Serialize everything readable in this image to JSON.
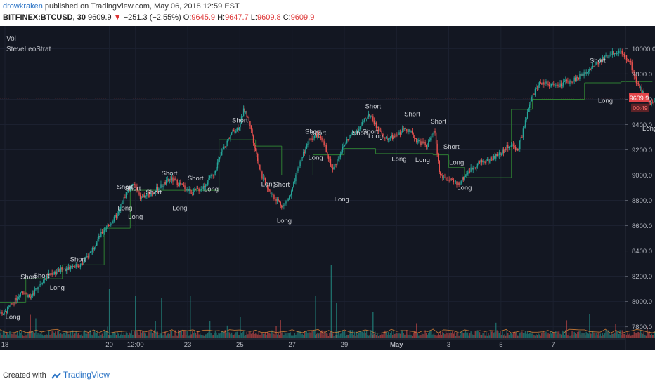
{
  "header": {
    "author": "drowkraken",
    "published_text": " published on TradingView.com, May 06, 2018 12:59 EST",
    "symbol": "BITFINEX:BTCUSD, 30",
    "last": "9609.9",
    "down_arrow": "▼",
    "change": "−251.3 (−2.55%)",
    "o_label": "O:",
    "o_value": "9645.9",
    "h_label": "H:",
    "h_value": "9647.7",
    "l_label": "L:",
    "l_value": "9609.8",
    "c_label": "C:",
    "c_value": "9609.9"
  },
  "legend": {
    "vol": "Vol",
    "strategy": "SteveLeoStrat"
  },
  "price_badge": {
    "price": "9609.9",
    "countdown": "00:49"
  },
  "footer": {
    "created_with": "Created with",
    "brand": "TradingView"
  },
  "colors": {
    "background": "#131722",
    "up": "#26a69a",
    "down": "#ef5350",
    "price_line": "#e05050",
    "stop_line": "#2e7d32",
    "label": "#d0d3d9"
  },
  "chart_data": {
    "type": "candlestick",
    "title": "",
    "ylim": [
      7720,
      10130
    ],
    "y_ticks": [
      10000,
      9800,
      9600,
      9400,
      9200,
      9000,
      8800,
      8600,
      8400,
      8200,
      8000,
      7800
    ],
    "y_tick_labels": [
      "10000.0",
      "9800.0",
      "9600.0",
      "9400.0",
      "9200.0",
      "9000.0",
      "8800.0",
      "8600.0",
      "8400.0",
      "8200.0",
      "8000.0",
      "7800.0"
    ],
    "x_ticks": [
      {
        "label": "18",
        "day": 0
      },
      {
        "label": "20",
        "day": 2
      },
      {
        "label": "12:00",
        "day": 2.5
      },
      {
        "label": "23",
        "day": 3.5
      },
      {
        "label": "25",
        "day": 4.5
      },
      {
        "label": "27",
        "day": 5.5
      },
      {
        "label": "29",
        "day": 6.5
      },
      {
        "label": "May",
        "day": 7.5
      },
      {
        "label": "3",
        "day": 8.5
      },
      {
        "label": "5",
        "day": 9.5
      },
      {
        "label": "7",
        "day": 10.5
      }
    ],
    "price_path": [
      [
        -0.2,
        7940
      ],
      [
        0.0,
        7900
      ],
      [
        0.2,
        8000
      ],
      [
        0.35,
        8090
      ],
      [
        0.5,
        8030
      ],
      [
        0.7,
        8150
      ],
      [
        0.9,
        8220
      ],
      [
        1.1,
        8250
      ],
      [
        1.3,
        8280
      ],
      [
        1.5,
        8290
      ],
      [
        1.7,
        8420
      ],
      [
        1.9,
        8560
      ],
      [
        2.05,
        8620
      ],
      [
        2.2,
        8700
      ],
      [
        2.35,
        8870
      ],
      [
        2.5,
        8930
      ],
      [
        2.6,
        8820
      ],
      [
        2.8,
        8850
      ],
      [
        3.0,
        8910
      ],
      [
        3.2,
        8970
      ],
      [
        3.4,
        8920
      ],
      [
        3.6,
        8860
      ],
      [
        3.8,
        8900
      ],
      [
        4.0,
        9000
      ],
      [
        4.2,
        9200
      ],
      [
        4.35,
        9330
      ],
      [
        4.5,
        9380
      ],
      [
        4.6,
        9520
      ],
      [
        4.7,
        9430
      ],
      [
        4.8,
        9230
      ],
      [
        4.95,
        8980
      ],
      [
        5.15,
        8840
      ],
      [
        5.35,
        8750
      ],
      [
        5.5,
        8850
      ],
      [
        5.7,
        9140
      ],
      [
        5.85,
        9280
      ],
      [
        6.0,
        9320
      ],
      [
        6.15,
        9230
      ],
      [
        6.3,
        9040
      ],
      [
        6.45,
        9180
      ],
      [
        6.6,
        9300
      ],
      [
        6.8,
        9370
      ],
      [
        7.0,
        9490
      ],
      [
        7.15,
        9370
      ],
      [
        7.3,
        9290
      ],
      [
        7.5,
        9300
      ],
      [
        7.7,
        9380
      ],
      [
        7.9,
        9280
      ],
      [
        8.1,
        9230
      ],
      [
        8.25,
        9350
      ],
      [
        8.35,
        9000
      ],
      [
        8.5,
        8960
      ],
      [
        8.7,
        8930
      ],
      [
        8.9,
        9030
      ],
      [
        9.1,
        9100
      ],
      [
        9.3,
        9120
      ],
      [
        9.5,
        9170
      ],
      [
        9.7,
        9240
      ],
      [
        9.85,
        9200
      ],
      [
        10.0,
        9440
      ],
      [
        10.1,
        9600
      ],
      [
        10.25,
        9730
      ],
      [
        10.4,
        9730
      ],
      [
        10.6,
        9700
      ],
      [
        10.8,
        9740
      ],
      [
        11.0,
        9770
      ],
      [
        11.2,
        9840
      ],
      [
        11.4,
        9900
      ],
      [
        11.55,
        9940
      ],
      [
        11.7,
        9980
      ],
      [
        11.85,
        9960
      ],
      [
        12.0,
        9890
      ],
      [
        12.1,
        9750
      ],
      [
        12.25,
        9640
      ],
      [
        12.4,
        9560
      ],
      [
        12.55,
        9610
      ]
    ],
    "stop_levels": [
      [
        -0.2,
        0.4,
        7990
      ],
      [
        0.4,
        1.1,
        8180
      ],
      [
        1.1,
        1.9,
        8290
      ],
      [
        1.9,
        2.4,
        8580
      ],
      [
        2.4,
        3.5,
        8880
      ],
      [
        3.5,
        4.1,
        8880
      ],
      [
        4.1,
        4.8,
        9280
      ],
      [
        4.8,
        5.3,
        9230
      ],
      [
        5.3,
        5.9,
        9000
      ],
      [
        5.9,
        6.5,
        9160
      ],
      [
        6.5,
        7.1,
        9210
      ],
      [
        7.1,
        8.2,
        9170
      ],
      [
        8.2,
        8.5,
        9160
      ],
      [
        8.5,
        8.8,
        9060
      ],
      [
        8.8,
        9.7,
        8980
      ],
      [
        9.7,
        10.1,
        9520
      ],
      [
        10.1,
        11.1,
        9600
      ],
      [
        11.1,
        11.8,
        9730
      ],
      [
        11.8,
        12.4,
        9740
      ]
    ],
    "signals": [
      {
        "d": 0.15,
        "y": 7940,
        "text": "Long",
        "side": "below"
      },
      {
        "d": 0.45,
        "y": 8150,
        "text": "Short",
        "side": "above"
      },
      {
        "d": 0.7,
        "y": 8160,
        "text": "Short",
        "side": "above"
      },
      {
        "d": 1.0,
        "y": 8170,
        "text": "Long",
        "side": "below"
      },
      {
        "d": 1.4,
        "y": 8290,
        "text": "Short",
        "side": "above"
      },
      {
        "d": 2.3,
        "y": 8860,
        "text": "Short",
        "side": "above"
      },
      {
        "d": 2.45,
        "y": 8850,
        "text": "Short",
        "side": "above"
      },
      {
        "d": 2.3,
        "y": 8800,
        "text": "Long",
        "side": "below"
      },
      {
        "d": 2.5,
        "y": 8730,
        "text": "Long",
        "side": "below"
      },
      {
        "d": 2.85,
        "y": 8820,
        "text": "Short",
        "side": "above"
      },
      {
        "d": 3.15,
        "y": 8970,
        "text": "Short",
        "side": "above"
      },
      {
        "d": 3.35,
        "y": 8800,
        "text": "Long",
        "side": "below"
      },
      {
        "d": 3.65,
        "y": 8930,
        "text": "Short",
        "side": "above"
      },
      {
        "d": 3.95,
        "y": 8950,
        "text": "Long",
        "side": "below"
      },
      {
        "d": 4.5,
        "y": 9390,
        "text": "Short",
        "side": "above"
      },
      {
        "d": 5.05,
        "y": 8990,
        "text": "Long",
        "side": "below"
      },
      {
        "d": 5.3,
        "y": 8880,
        "text": "Short",
        "side": "above"
      },
      {
        "d": 5.35,
        "y": 8700,
        "text": "Long",
        "side": "below"
      },
      {
        "d": 5.9,
        "y": 9300,
        "text": "Short",
        "side": "above"
      },
      {
        "d": 6.0,
        "y": 9290,
        "text": "Short",
        "side": "above"
      },
      {
        "d": 5.95,
        "y": 9200,
        "text": "Long",
        "side": "below"
      },
      {
        "d": 6.45,
        "y": 8870,
        "text": "Long",
        "side": "below"
      },
      {
        "d": 6.8,
        "y": 9290,
        "text": "Short",
        "side": "above"
      },
      {
        "d": 7.0,
        "y": 9300,
        "text": "Short",
        "side": "above"
      },
      {
        "d": 7.05,
        "y": 9500,
        "text": "Short",
        "side": "above"
      },
      {
        "d": 7.1,
        "y": 9370,
        "text": "Long",
        "side": "below"
      },
      {
        "d": 7.55,
        "y": 9190,
        "text": "Long",
        "side": "below"
      },
      {
        "d": 7.8,
        "y": 9440,
        "text": "Short",
        "side": "above"
      },
      {
        "d": 8.0,
        "y": 9180,
        "text": "Long",
        "side": "below"
      },
      {
        "d": 8.3,
        "y": 9380,
        "text": "Short",
        "side": "above"
      },
      {
        "d": 8.55,
        "y": 9180,
        "text": "Short",
        "side": "above"
      },
      {
        "d": 8.65,
        "y": 9160,
        "text": "Long",
        "side": "below"
      },
      {
        "d": 8.8,
        "y": 8960,
        "text": "Long",
        "side": "below"
      },
      {
        "d": 11.35,
        "y": 9860,
        "text": "Short",
        "side": "above"
      },
      {
        "d": 11.5,
        "y": 9650,
        "text": "Long",
        "side": "below"
      },
      {
        "d": 12.35,
        "y": 9430,
        "text": "Long",
        "side": "below"
      }
    ]
  }
}
